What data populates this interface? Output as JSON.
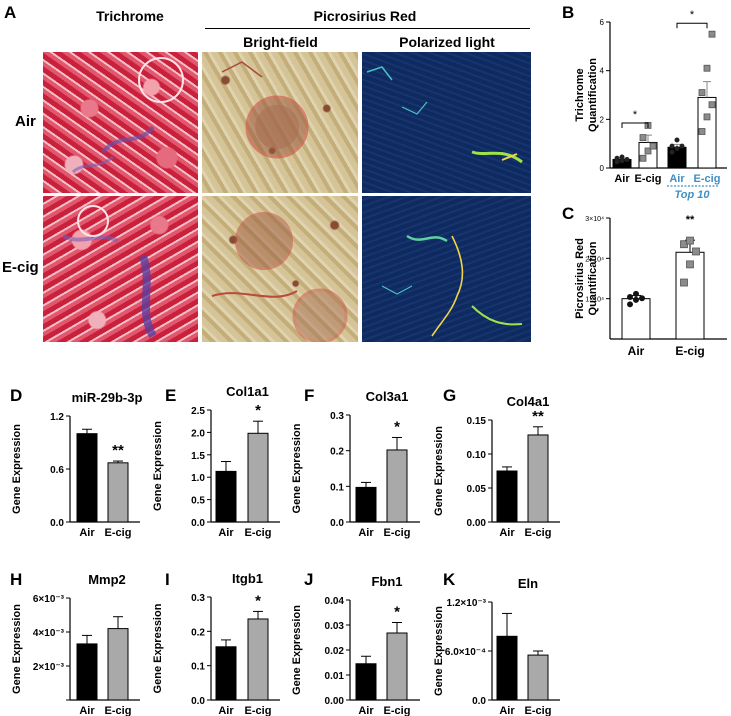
{
  "panel_letters": {
    "A": "A",
    "B": "B",
    "C": "C",
    "D": "D",
    "E": "E",
    "F": "F",
    "G": "G",
    "H": "H",
    "I": "I",
    "J": "J",
    "K": "K"
  },
  "panelA": {
    "col_trichrome": "Trichrome",
    "col_picro": "Picrosirius Red",
    "sub_bright": "Bright-field",
    "sub_polar": "Polarized light",
    "row_air": "Air",
    "row_ecig": "E-cig"
  },
  "colors": {
    "black_bar": "#000000",
    "grey_bar": "#a9a9a9",
    "white_bar": "#ffffff",
    "marker_grey": "#8c8c8c",
    "top10_blue": "#3f8fc4",
    "trichrome_red": "#d0344a",
    "trichrome_blue": "#6a4fa8",
    "bright_tan": "#cdb98c",
    "polar_navy": "#10295e"
  },
  "chart_data": [
    {
      "id": "B",
      "type": "bar",
      "ylabel": "Trichrome Quantification",
      "categories": [
        "Air",
        "E-cig",
        "Air",
        "E-cig"
      ],
      "group_label": "Top 10",
      "yticks": [
        "0",
        "2",
        "4",
        "6"
      ],
      "ylim": [
        0,
        6
      ],
      "values": [
        0.35,
        1.05,
        0.85,
        2.9
      ],
      "errors": [
        0.05,
        0.3,
        0.12,
        0.65
      ],
      "bar_colors": [
        "#000000",
        "#ffffff",
        "#000000",
        "#ffffff"
      ],
      "points": [
        [
          0.25,
          0.3,
          0.35,
          0.4,
          0.45
        ],
        [
          0.4,
          0.7,
          0.9,
          1.25,
          1.75
        ],
        [
          0.65,
          0.8,
          0.9,
          0.9,
          1.15
        ],
        [
          1.5,
          2.1,
          2.6,
          3.1,
          4.1,
          5.5
        ]
      ],
      "significance": [
        "*",
        "*"
      ]
    },
    {
      "id": "C",
      "type": "bar",
      "ylabel": "Picrosirius  Red Quantification",
      "categories": [
        "Air",
        "E-cig"
      ],
      "yticks": [
        "1×10⁴",
        "2×10⁴",
        "3×10⁴"
      ],
      "ytick_values": [
        10000,
        20000,
        30000
      ],
      "ylim": [
        0,
        30000
      ],
      "values": [
        10000,
        21500
      ],
      "errors": [
        800,
        3000
      ],
      "bar_colors": [
        "#ffffff",
        "#ffffff"
      ],
      "points": [
        [
          8600,
          9700,
          10100,
          10400,
          11200
        ],
        [
          14000,
          18500,
          21700,
          23500,
          24400
        ]
      ],
      "significance": [
        "**"
      ]
    },
    {
      "id": "D",
      "type": "bar",
      "title": "miR-29b-3p",
      "ylabel": "Gene Expression",
      "categories": [
        "Air",
        "E-cig"
      ],
      "yticks": [
        "0.0",
        "0.6",
        "1.2"
      ],
      "ylim": [
        0,
        1.2
      ],
      "values": [
        1.0,
        0.67
      ],
      "errors": [
        0.05,
        0.02
      ],
      "significance": "**"
    },
    {
      "id": "E",
      "type": "bar",
      "title": "Col1a1",
      "ylabel": "Gene Expression",
      "categories": [
        "Air",
        "E-cig"
      ],
      "yticks": [
        "0.0",
        "0.5",
        "1.0",
        "1.5",
        "2.0",
        "2.5"
      ],
      "ylim": [
        0,
        2.5
      ],
      "values": [
        1.13,
        1.98
      ],
      "errors": [
        0.22,
        0.27
      ],
      "significance": "*"
    },
    {
      "id": "F",
      "type": "bar",
      "title": "Col3a1",
      "ylabel": "Gene Expression",
      "categories": [
        "Air",
        "E-cig"
      ],
      "yticks": [
        "0.0",
        "0.1",
        "0.2",
        "0.3"
      ],
      "ylim": [
        0,
        0.3
      ],
      "values": [
        0.097,
        0.202
      ],
      "errors": [
        0.014,
        0.035
      ],
      "significance": "*"
    },
    {
      "id": "G",
      "type": "bar",
      "title": "Col4a1",
      "ylabel": "Gene Expression",
      "categories": [
        "Air",
        "E-cig"
      ],
      "yticks": [
        "0.00",
        "0.05",
        "0.10",
        "0.15"
      ],
      "ylim": [
        0,
        0.15
      ],
      "values": [
        0.075,
        0.128
      ],
      "errors": [
        0.006,
        0.012
      ],
      "significance": "**"
    },
    {
      "id": "H",
      "type": "bar",
      "title": "Mmp2",
      "ylabel": "Gene Expression",
      "categories": [
        "Air",
        "E-cig"
      ],
      "yticks": [
        "",
        "2×10⁻³",
        "4×10⁻³",
        "6×10⁻³"
      ],
      "ytick_values": [
        0,
        0.002,
        0.004,
        0.006
      ],
      "ylim": [
        0,
        0.006
      ],
      "values": [
        0.0033,
        0.0042
      ],
      "errors": [
        0.0005,
        0.0007
      ],
      "significance": ""
    },
    {
      "id": "I",
      "type": "bar",
      "title": "Itgb1",
      "ylabel": "Gene Expression",
      "categories": [
        "Air",
        "E-cig"
      ],
      "yticks": [
        "0.0",
        "0.1",
        "0.2",
        "0.3"
      ],
      "ylim": [
        0,
        0.3
      ],
      "values": [
        0.155,
        0.236
      ],
      "errors": [
        0.02,
        0.022
      ],
      "significance": "*"
    },
    {
      "id": "J",
      "type": "bar",
      "title": "Fbn1",
      "ylabel": "Gene Expression",
      "categories": [
        "Air",
        "E-cig"
      ],
      "yticks": [
        "0.00",
        "0.01",
        "0.02",
        "0.03",
        "0.04"
      ],
      "ylim": [
        0,
        0.04
      ],
      "values": [
        0.0145,
        0.0268
      ],
      "errors": [
        0.003,
        0.0042
      ],
      "significance": "*"
    },
    {
      "id": "K",
      "type": "bar",
      "title": "Eln",
      "ylabel": "Gene Expression",
      "categories": [
        "Air",
        "E-cig"
      ],
      "yticks": [
        "0.0",
        "6.0×10⁻⁴",
        "1.2×10⁻³"
      ],
      "ytick_values": [
        0,
        0.0006,
        0.0012
      ],
      "ylim": [
        0,
        0.0012
      ],
      "values": [
        0.00078,
        0.00055
      ],
      "errors": [
        0.00028,
        5e-05
      ],
      "significance": ""
    }
  ]
}
